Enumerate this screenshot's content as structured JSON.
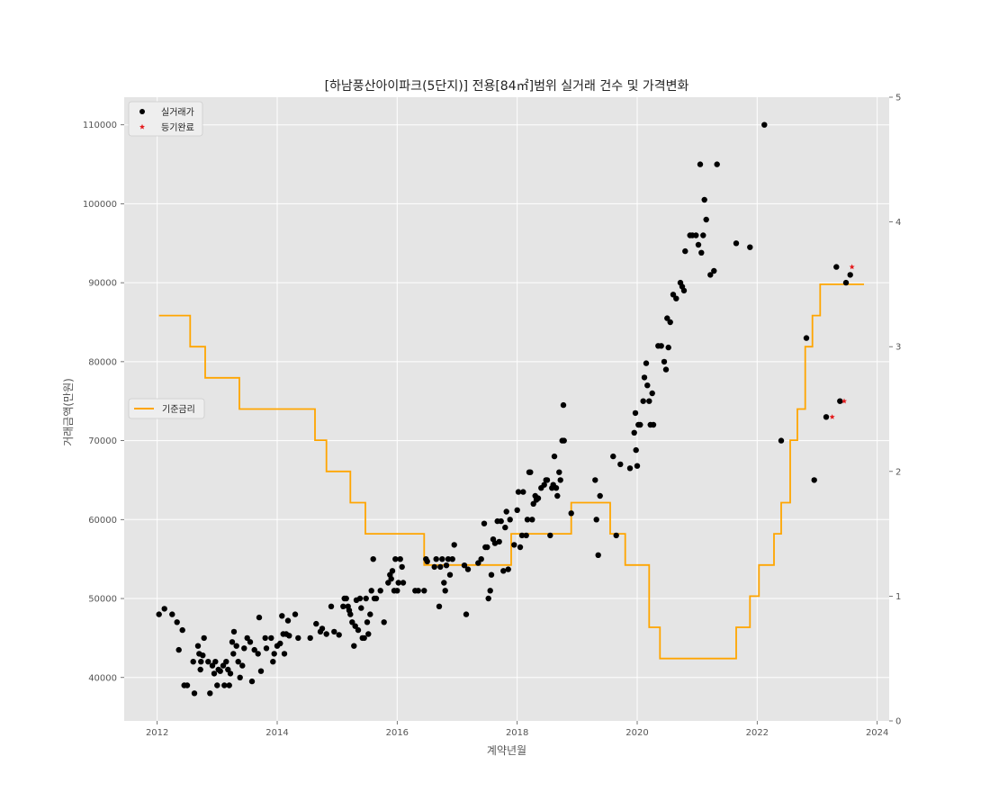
{
  "chart_data": {
    "type": "scatter",
    "title": "[하남풍산아이파크(5단지)] 전용[84㎡]범위 실거래 건수 및 가격변화",
    "xlabel": "계약년월",
    "ylabel": "거래금액(만원)",
    "xlim": [
      2011.45,
      2024.2
    ],
    "ylim": [
      34500,
      113500
    ],
    "y2lim": [
      0,
      5
    ],
    "x_ticks": [
      2012,
      2014,
      2016,
      2018,
      2020,
      2022,
      2024
    ],
    "x_tick_labels": [
      "2012",
      "2014",
      "2016",
      "2018",
      "2020",
      "2022",
      "2024"
    ],
    "y_ticks": [
      40000,
      50000,
      60000,
      70000,
      80000,
      90000,
      100000,
      110000
    ],
    "y_tick_labels": [
      "40000",
      "50000",
      "60000",
      "70000",
      "80000",
      "90000",
      "100000",
      "110000"
    ],
    "y2_ticks": [
      0,
      1,
      2,
      3,
      4,
      5
    ],
    "y2_tick_labels": [
      "0",
      "1",
      "2",
      "3",
      "4",
      "5"
    ],
    "grid": true,
    "background": "#e5e5e5",
    "legend_upper": {
      "placement": "upper-left",
      "entries": [
        {
          "label": "실거래가",
          "marker": "circle",
          "color": "#000000"
        },
        {
          "label": "등기완료",
          "marker": "star",
          "color": "#e41a1c"
        }
      ]
    },
    "legend_rate": {
      "placement": "center-left",
      "entries": [
        {
          "label": "기준금리",
          "color": "#ffa500"
        }
      ]
    },
    "series": [
      {
        "name": "실거래가",
        "kind": "scatter",
        "color": "#000000",
        "points": [
          [
            2012.03,
            48000
          ],
          [
            2012.12,
            48700
          ],
          [
            2012.25,
            48000
          ],
          [
            2012.33,
            47000
          ],
          [
            2012.36,
            43500
          ],
          [
            2012.42,
            46000
          ],
          [
            2012.45,
            39000
          ],
          [
            2012.5,
            39000
          ],
          [
            2012.6,
            42000
          ],
          [
            2012.62,
            38000
          ],
          [
            2012.68,
            44000
          ],
          [
            2012.7,
            43000
          ],
          [
            2012.72,
            41000
          ],
          [
            2012.73,
            42000
          ],
          [
            2012.76,
            42800
          ],
          [
            2012.78,
            45000
          ],
          [
            2012.85,
            42000
          ],
          [
            2012.88,
            38000
          ],
          [
            2012.92,
            41500
          ],
          [
            2012.95,
            40500
          ],
          [
            2012.97,
            42000
          ],
          [
            2013.0,
            39000
          ],
          [
            2013.02,
            41000
          ],
          [
            2013.05,
            40800
          ],
          [
            2013.1,
            41500
          ],
          [
            2013.12,
            39000
          ],
          [
            2013.15,
            42000
          ],
          [
            2013.18,
            41000
          ],
          [
            2013.2,
            39000
          ],
          [
            2013.22,
            40500
          ],
          [
            2013.25,
            44500
          ],
          [
            2013.27,
            43000
          ],
          [
            2013.28,
            45800
          ],
          [
            2013.32,
            44000
          ],
          [
            2013.35,
            42000
          ],
          [
            2013.38,
            40000
          ],
          [
            2013.42,
            41500
          ],
          [
            2013.45,
            43700
          ],
          [
            2013.5,
            45000
          ],
          [
            2013.55,
            44500
          ],
          [
            2013.58,
            39500
          ],
          [
            2013.62,
            43500
          ],
          [
            2013.68,
            43000
          ],
          [
            2013.7,
            47600
          ],
          [
            2013.73,
            40800
          ],
          [
            2013.8,
            45000
          ],
          [
            2013.82,
            43700
          ],
          [
            2013.9,
            45000
          ],
          [
            2013.93,
            42000
          ],
          [
            2013.95,
            43000
          ],
          [
            2014.0,
            44000
          ],
          [
            2014.05,
            44300
          ],
          [
            2014.08,
            47800
          ],
          [
            2014.1,
            45500
          ],
          [
            2014.12,
            43000
          ],
          [
            2014.15,
            45500
          ],
          [
            2014.18,
            47200
          ],
          [
            2014.2,
            45300
          ],
          [
            2014.3,
            48000
          ],
          [
            2014.35,
            45000
          ],
          [
            2014.55,
            45000
          ],
          [
            2014.65,
            46800
          ],
          [
            2014.72,
            45800
          ],
          [
            2014.75,
            46200
          ],
          [
            2014.82,
            45500
          ],
          [
            2014.9,
            49000
          ],
          [
            2014.95,
            45800
          ],
          [
            2015.03,
            45400
          ],
          [
            2015.1,
            49000
          ],
          [
            2015.12,
            50000
          ],
          [
            2015.15,
            50000
          ],
          [
            2015.18,
            49000
          ],
          [
            2015.2,
            48500
          ],
          [
            2015.22,
            48000
          ],
          [
            2015.25,
            47000
          ],
          [
            2015.28,
            44000
          ],
          [
            2015.3,
            46500
          ],
          [
            2015.32,
            49800
          ],
          [
            2015.35,
            46000
          ],
          [
            2015.38,
            50000
          ],
          [
            2015.4,
            48800
          ],
          [
            2015.42,
            45000
          ],
          [
            2015.45,
            45000
          ],
          [
            2015.48,
            50000
          ],
          [
            2015.5,
            47000
          ],
          [
            2015.52,
            45500
          ],
          [
            2015.55,
            48000
          ],
          [
            2015.57,
            51000
          ],
          [
            2015.6,
            55000
          ],
          [
            2015.62,
            50000
          ],
          [
            2015.65,
            50000
          ],
          [
            2015.72,
            51000
          ],
          [
            2015.78,
            47000
          ],
          [
            2015.85,
            52000
          ],
          [
            2015.88,
            53000
          ],
          [
            2015.9,
            52500
          ],
          [
            2015.92,
            53500
          ],
          [
            2015.95,
            51000
          ],
          [
            2015.97,
            55000
          ],
          [
            2016.0,
            51000
          ],
          [
            2016.02,
            52000
          ],
          [
            2016.05,
            55000
          ],
          [
            2016.08,
            54000
          ],
          [
            2016.1,
            52000
          ],
          [
            2016.3,
            51000
          ],
          [
            2016.35,
            51000
          ],
          [
            2016.45,
            51000
          ],
          [
            2016.48,
            55000
          ],
          [
            2016.5,
            54700
          ],
          [
            2016.62,
            54000
          ],
          [
            2016.65,
            55000
          ],
          [
            2016.7,
            49000
          ],
          [
            2016.72,
            54000
          ],
          [
            2016.75,
            55000
          ],
          [
            2016.78,
            52000
          ],
          [
            2016.8,
            51000
          ],
          [
            2016.82,
            54200
          ],
          [
            2016.85,
            55000
          ],
          [
            2016.88,
            53000
          ],
          [
            2016.92,
            55000
          ],
          [
            2016.95,
            56800
          ],
          [
            2017.12,
            54200
          ],
          [
            2017.15,
            48000
          ],
          [
            2017.18,
            53700
          ],
          [
            2017.35,
            54500
          ],
          [
            2017.4,
            55000
          ],
          [
            2017.45,
            59500
          ],
          [
            2017.47,
            56500
          ],
          [
            2017.5,
            56500
          ],
          [
            2017.52,
            50000
          ],
          [
            2017.55,
            51000
          ],
          [
            2017.57,
            53000
          ],
          [
            2017.6,
            57500
          ],
          [
            2017.63,
            57000
          ],
          [
            2017.67,
            59800
          ],
          [
            2017.7,
            57200
          ],
          [
            2017.73,
            59800
          ],
          [
            2017.77,
            53500
          ],
          [
            2017.8,
            59000
          ],
          [
            2017.82,
            61000
          ],
          [
            2017.85,
            53700
          ],
          [
            2017.88,
            60000
          ],
          [
            2017.95,
            56800
          ],
          [
            2018.0,
            61200
          ],
          [
            2018.02,
            63500
          ],
          [
            2018.05,
            56500
          ],
          [
            2018.08,
            58000
          ],
          [
            2018.1,
            63500
          ],
          [
            2018.15,
            58000
          ],
          [
            2018.17,
            60000
          ],
          [
            2018.2,
            66000
          ],
          [
            2018.22,
            66000
          ],
          [
            2018.25,
            60000
          ],
          [
            2018.27,
            62000
          ],
          [
            2018.3,
            63000
          ],
          [
            2018.32,
            62500
          ],
          [
            2018.35,
            62700
          ],
          [
            2018.4,
            64000
          ],
          [
            2018.45,
            64400
          ],
          [
            2018.48,
            65000
          ],
          [
            2018.5,
            65000
          ],
          [
            2018.55,
            58000
          ],
          [
            2018.58,
            64000
          ],
          [
            2018.6,
            64400
          ],
          [
            2018.62,
            68000
          ],
          [
            2018.65,
            64000
          ],
          [
            2018.67,
            63000
          ],
          [
            2018.7,
            66000
          ],
          [
            2018.72,
            65000
          ],
          [
            2018.75,
            70000
          ],
          [
            2018.77,
            74500
          ],
          [
            2018.78,
            70000
          ],
          [
            2018.9,
            60800
          ],
          [
            2019.3,
            65000
          ],
          [
            2019.32,
            60000
          ],
          [
            2019.35,
            55500
          ],
          [
            2019.38,
            63000
          ],
          [
            2019.6,
            68000
          ],
          [
            2019.65,
            58000
          ],
          [
            2019.72,
            67000
          ],
          [
            2019.88,
            66500
          ],
          [
            2019.95,
            71000
          ],
          [
            2019.97,
            73500
          ],
          [
            2019.98,
            68800
          ],
          [
            2020.0,
            66800
          ],
          [
            2020.02,
            72000
          ],
          [
            2020.05,
            72000
          ],
          [
            2020.1,
            75000
          ],
          [
            2020.12,
            78000
          ],
          [
            2020.15,
            79800
          ],
          [
            2020.17,
            77000
          ],
          [
            2020.2,
            75000
          ],
          [
            2020.22,
            72000
          ],
          [
            2020.25,
            76000
          ],
          [
            2020.27,
            72000
          ],
          [
            2020.35,
            82000
          ],
          [
            2020.4,
            82000
          ],
          [
            2020.45,
            80000
          ],
          [
            2020.48,
            79000
          ],
          [
            2020.5,
            85500
          ],
          [
            2020.52,
            81800
          ],
          [
            2020.55,
            85000
          ],
          [
            2020.6,
            88500
          ],
          [
            2020.65,
            88000
          ],
          [
            2020.72,
            90000
          ],
          [
            2020.75,
            89500
          ],
          [
            2020.78,
            89000
          ],
          [
            2020.8,
            94000
          ],
          [
            2020.88,
            96000
          ],
          [
            2020.92,
            96000
          ],
          [
            2020.98,
            96000
          ],
          [
            2021.02,
            94800
          ],
          [
            2021.05,
            105000
          ],
          [
            2021.07,
            93800
          ],
          [
            2021.1,
            96000
          ],
          [
            2021.12,
            100500
          ],
          [
            2021.15,
            98000
          ],
          [
            2021.22,
            91000
          ],
          [
            2021.28,
            91500
          ],
          [
            2021.33,
            105000
          ],
          [
            2021.65,
            95000
          ],
          [
            2021.88,
            94500
          ],
          [
            2022.12,
            110000
          ],
          [
            2022.4,
            70000
          ],
          [
            2022.82,
            83000
          ],
          [
            2022.95,
            65000
          ],
          [
            2023.15,
            73000
          ],
          [
            2023.32,
            92000
          ],
          [
            2023.38,
            75000
          ],
          [
            2023.48,
            90000
          ],
          [
            2023.55,
            91000
          ]
        ]
      },
      {
        "name": "등기완료",
        "kind": "scatter",
        "marker": "star",
        "color": "#e41a1c",
        "points": [
          [
            2023.25,
            73000
          ],
          [
            2023.45,
            75000
          ],
          [
            2023.58,
            92000
          ]
        ]
      },
      {
        "name": "기준금리",
        "kind": "step-line",
        "axis": "right",
        "color": "#ffa500",
        "points": [
          [
            2012.03,
            3.25
          ],
          [
            2012.55,
            3.0
          ],
          [
            2012.8,
            2.75
          ],
          [
            2013.37,
            2.5
          ],
          [
            2014.63,
            2.25
          ],
          [
            2014.82,
            2.0
          ],
          [
            2015.22,
            1.75
          ],
          [
            2015.47,
            1.5
          ],
          [
            2016.45,
            1.25
          ],
          [
            2017.9,
            1.5
          ],
          [
            2018.9,
            1.75
          ],
          [
            2019.55,
            1.5
          ],
          [
            2019.8,
            1.25
          ],
          [
            2020.2,
            0.75
          ],
          [
            2020.38,
            0.5
          ],
          [
            2021.65,
            0.75
          ],
          [
            2021.88,
            1.0
          ],
          [
            2022.03,
            1.25
          ],
          [
            2022.28,
            1.5
          ],
          [
            2022.4,
            1.75
          ],
          [
            2022.55,
            2.25
          ],
          [
            2022.67,
            2.5
          ],
          [
            2022.8,
            3.0
          ],
          [
            2022.92,
            3.25
          ],
          [
            2023.05,
            3.5
          ],
          [
            2023.78,
            3.5
          ]
        ]
      }
    ]
  }
}
